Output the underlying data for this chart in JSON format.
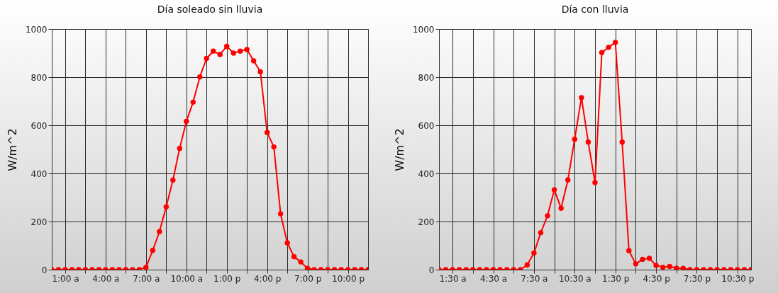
{
  "chart_data": [
    {
      "type": "line",
      "title": "Día soleado sin lluvia",
      "ylabel": "W/m^2",
      "x": [
        0,
        0.5,
        1,
        1.5,
        2,
        2.5,
        3,
        3.5,
        4,
        4.5,
        5,
        5.5,
        6,
        6.5,
        7,
        7.5,
        8,
        8.5,
        9,
        9.5,
        10,
        10.5,
        11,
        11.5,
        12,
        12.5,
        13,
        13.5,
        14,
        14.5,
        15,
        15.5,
        16,
        16.5,
        17,
        17.5,
        18,
        18.5,
        19,
        19.5,
        20,
        20.5,
        21,
        21.5,
        22,
        22.5,
        23,
        23.5
      ],
      "series": [
        {
          "color": "#ff0000",
          "values": [
            0,
            0,
            0,
            0,
            0,
            0,
            0,
            0,
            0,
            0,
            0,
            0,
            0,
            0,
            10,
            80,
            158,
            261,
            372,
            504,
            616,
            696,
            801,
            878,
            908,
            894,
            928,
            900,
            908,
            915,
            868,
            822,
            570,
            510,
            232,
            111,
            54,
            32,
            5,
            0,
            0,
            0,
            0,
            0,
            0,
            0,
            0,
            0
          ]
        }
      ],
      "xlim": [
        0,
        23.5
      ],
      "xticks": [
        {
          "value": 1,
          "label": "1:00 a"
        },
        {
          "value": 2.5,
          "label": null
        },
        {
          "value": 4,
          "label": "4:00 a"
        },
        {
          "value": 5.5,
          "label": null
        },
        {
          "value": 7,
          "label": "7:00 a"
        },
        {
          "value": 8.5,
          "label": null
        },
        {
          "value": 10,
          "label": "10:00 a"
        },
        {
          "value": 11.5,
          "label": null
        },
        {
          "value": 13,
          "label": "1:00 p"
        },
        {
          "value": 14.5,
          "label": null
        },
        {
          "value": 16,
          "label": "4:00 p"
        },
        {
          "value": 17.5,
          "label": null
        },
        {
          "value": 19,
          "label": "7:00 p"
        },
        {
          "value": 20.5,
          "label": null
        },
        {
          "value": 22,
          "label": "10:00 p"
        }
      ],
      "ylim": [
        0,
        1000
      ],
      "yticks": [
        0,
        200,
        400,
        600,
        800,
        1000
      ],
      "grid": true,
      "marker": "circle",
      "line_style": "solid"
    },
    {
      "type": "line",
      "title": "Día con lluvia",
      "ylabel": "W/m^2",
      "x": [
        0.5,
        1,
        1.5,
        2,
        2.5,
        3,
        3.5,
        4,
        4.5,
        5,
        5.5,
        6,
        6.5,
        7,
        7.5,
        8,
        8.5,
        9,
        9.5,
        10,
        10.5,
        11,
        11.5,
        12,
        12.5,
        13,
        13.5,
        14,
        14.5,
        15,
        15.5,
        16,
        16.5,
        17,
        17.5,
        18,
        18.5,
        19,
        19.5,
        20,
        20.5,
        21,
        21.5,
        22,
        22.5,
        23,
        23.5
      ],
      "series": [
        {
          "color": "#ff0000",
          "values": [
            0,
            0,
            0,
            0,
            0,
            0,
            0,
            0,
            0,
            0,
            0,
            0,
            0,
            20,
            69,
            154,
            224,
            332,
            255,
            373,
            542,
            715,
            530,
            362,
            902,
            924,
            944,
            530,
            79,
            24,
            43,
            47,
            18,
            10,
            13,
            6,
            5,
            0,
            0,
            0,
            0,
            0,
            0,
            0,
            0,
            0,
            0
          ]
        }
      ],
      "xlim": [
        0.5,
        23.5
      ],
      "xticks": [
        {
          "value": 1.5,
          "label": "1:30 a"
        },
        {
          "value": 3,
          "label": null
        },
        {
          "value": 4.5,
          "label": "4:30 a"
        },
        {
          "value": 6,
          "label": null
        },
        {
          "value": 7.5,
          "label": "7:30 a"
        },
        {
          "value": 9,
          "label": null
        },
        {
          "value": 10.5,
          "label": "10:30 a"
        },
        {
          "value": 12,
          "label": null
        },
        {
          "value": 13.5,
          "label": "1:30 p"
        },
        {
          "value": 15,
          "label": null
        },
        {
          "value": 16.5,
          "label": "4:30 p"
        },
        {
          "value": 18,
          "label": null
        },
        {
          "value": 19.5,
          "label": "7:30 p"
        },
        {
          "value": 21,
          "label": null
        },
        {
          "value": 22.5,
          "label": "10:30 p"
        }
      ],
      "ylim": [
        0,
        1000
      ],
      "yticks": [
        0,
        200,
        400,
        600,
        800,
        1000
      ],
      "grid": true,
      "marker": "circle",
      "line_style": "solid"
    }
  ]
}
